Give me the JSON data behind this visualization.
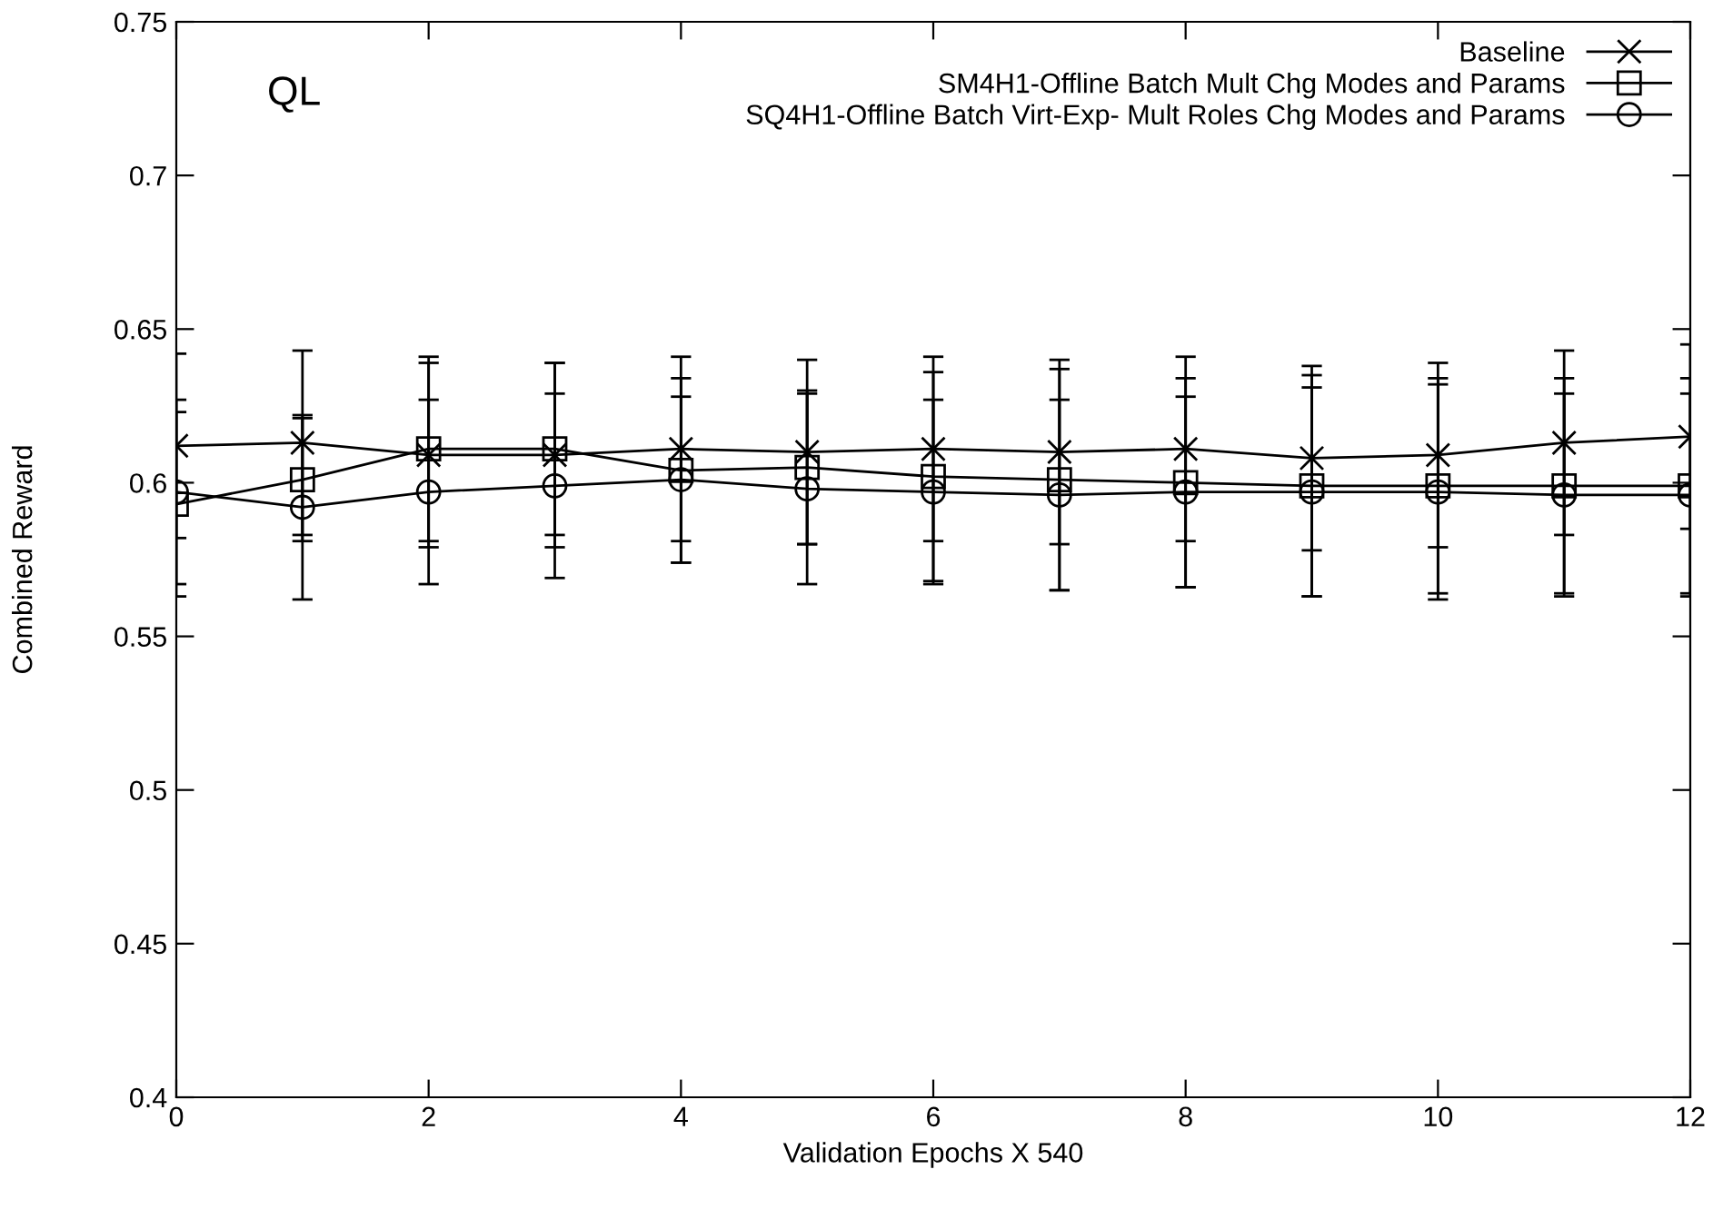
{
  "chart_data": {
    "type": "line",
    "xlabel": "Validation Epochs X 540",
    "ylabel": "Combined Reward",
    "annotations": [
      "QL"
    ],
    "x": [
      0,
      1,
      2,
      3,
      4,
      5,
      6,
      7,
      8,
      9,
      10,
      11,
      12
    ],
    "xlim": [
      0,
      12
    ],
    "xticks": [
      0,
      2,
      4,
      6,
      8,
      10,
      12
    ],
    "ylim": [
      0.4,
      0.75
    ],
    "yticks": [
      0.4,
      0.45,
      0.5,
      0.55,
      0.6,
      0.65,
      0.7,
      0.75
    ],
    "grid": false,
    "legend": "top right",
    "series": [
      {
        "name": "Baseline",
        "color": "#000000",
        "marker": "cross",
        "values": [
          0.612,
          0.613,
          0.609,
          0.609,
          0.611,
          0.61,
          0.611,
          0.61,
          0.611,
          0.608,
          0.609,
          0.613,
          0.615
        ],
        "errors": [
          0.03,
          0.03,
          0.03,
          0.03,
          0.03,
          0.03,
          0.03,
          0.03,
          0.03,
          0.03,
          0.03,
          0.03,
          0.03
        ]
      },
      {
        "name": "SM4H1-Offline Batch Mult Chg Modes and Params",
        "color": "#000000",
        "marker": "square",
        "values": [
          0.593,
          0.601,
          0.611,
          0.611,
          0.604,
          0.605,
          0.602,
          0.601,
          0.6,
          0.599,
          0.599,
          0.599,
          0.599
        ],
        "errors": [
          0.03,
          0.02,
          0.03,
          0.028,
          0.03,
          0.025,
          0.034,
          0.036,
          0.034,
          0.036,
          0.035,
          0.035,
          0.035
        ]
      },
      {
        "name": "SQ4H1-Offline Batch Virt-Exp- Mult Roles Chg Modes and Params",
        "color": "#000000",
        "marker": "circle",
        "values": [
          0.597,
          0.592,
          0.597,
          0.599,
          0.601,
          0.598,
          0.597,
          0.596,
          0.597,
          0.597,
          0.597,
          0.596,
          0.596
        ],
        "errors": [
          0.03,
          0.03,
          0.03,
          0.03,
          0.027,
          0.031,
          0.03,
          0.031,
          0.031,
          0.034,
          0.035,
          0.033,
          0.033
        ]
      }
    ]
  }
}
